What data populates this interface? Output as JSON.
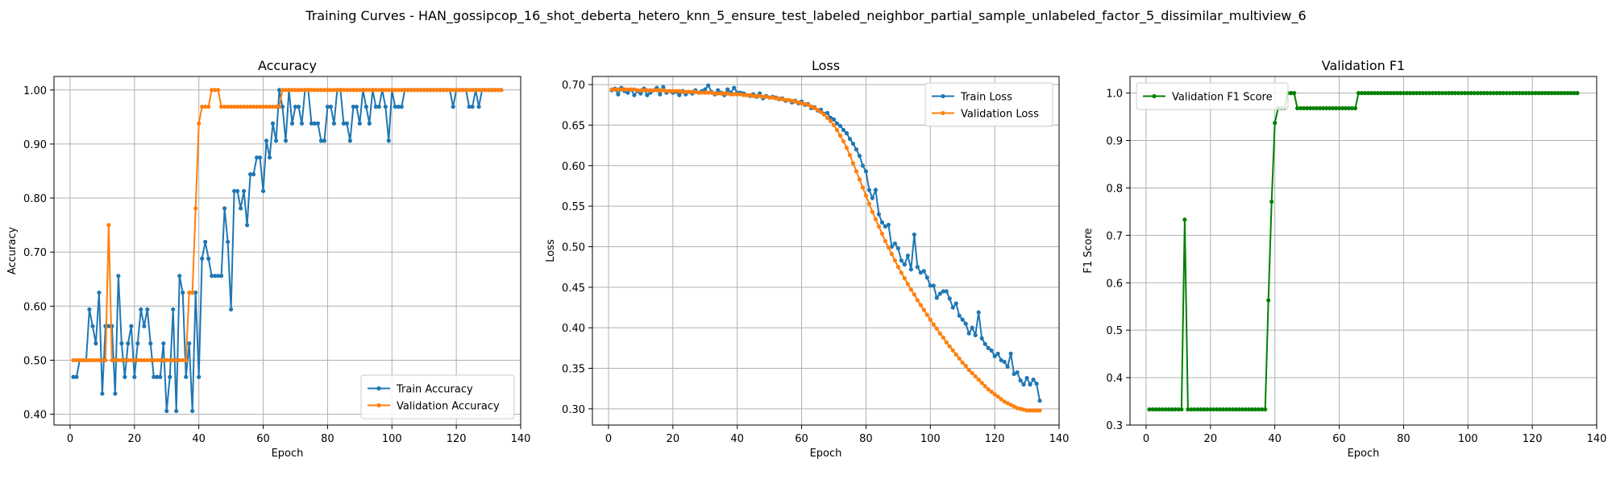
{
  "suptitle": "Training Curves - HAN_gossipcop_16_shot_deberta_hetero_knn_5_ensure_test_labeled_neighbor_partial_sample_unlabeled_factor_5_dissimilar_multiview_6",
  "colors": {
    "blue": "#1f77b4",
    "orange": "#ff7f0e",
    "green": "#008000",
    "grid": "#b0b0b0"
  },
  "chart_data": [
    {
      "type": "line",
      "title": "Accuracy",
      "xlabel": "Epoch",
      "ylabel": "Accuracy",
      "xlim": [
        -5,
        140
      ],
      "ylim": [
        0.38,
        1.025
      ],
      "xticks": [
        0,
        20,
        40,
        60,
        80,
        100,
        120,
        140
      ],
      "yticks": [
        0.4,
        0.5,
        0.6,
        0.7,
        0.8,
        0.9,
        1.0
      ],
      "grid": true,
      "legend": "lower right",
      "series": [
        {
          "name": "Train Accuracy",
          "color": "#1f77b4",
          "x_start": 1,
          "y": [
            0.469,
            0.469,
            0.5,
            0.5,
            0.5,
            0.594,
            0.563,
            0.531,
            0.625,
            0.438,
            0.563,
            0.563,
            0.563,
            0.438,
            0.656,
            0.531,
            0.469,
            0.531,
            0.563,
            0.469,
            0.531,
            0.594,
            0.563,
            0.594,
            0.531,
            0.469,
            0.469,
            0.469,
            0.531,
            0.406,
            0.469,
            0.594,
            0.406,
            0.656,
            0.625,
            0.469,
            0.531,
            0.406,
            0.625,
            0.469,
            0.688,
            0.719,
            0.688,
            0.656,
            0.656,
            0.656,
            0.656,
            0.781,
            0.719,
            0.594,
            0.813,
            0.813,
            0.781,
            0.813,
            0.75,
            0.844,
            0.844,
            0.875,
            0.875,
            0.813,
            0.906,
            0.875,
            0.938,
            0.906,
            1.0,
            0.969,
            0.906,
            1.0,
            0.938,
            0.969,
            0.969,
            0.938,
            1.0,
            1.0,
            0.938,
            0.938,
            0.938,
            0.906,
            0.906,
            0.969,
            0.969,
            0.938,
            1.0,
            1.0,
            0.938,
            0.938,
            0.906,
            0.969,
            0.969,
            0.938,
            1.0,
            0.969,
            0.938,
            1.0,
            0.969,
            0.969,
            1.0,
            0.969,
            0.906,
            1.0,
            0.969,
            0.969,
            0.969,
            1.0,
            1.0,
            1.0,
            1.0,
            1.0,
            1.0,
            1.0,
            1.0,
            1.0,
            1.0,
            1.0,
            1.0,
            1.0,
            1.0,
            1.0,
            0.969,
            1.0,
            1.0,
            1.0,
            1.0,
            0.969,
            0.969,
            1.0,
            0.969,
            1.0,
            1.0,
            1.0,
            1.0,
            1.0,
            1.0,
            1.0
          ]
        },
        {
          "name": "Validation Accuracy",
          "color": "#ff7f0e",
          "x_start": 1,
          "y": [
            0.5,
            0.5,
            0.5,
            0.5,
            0.5,
            0.5,
            0.5,
            0.5,
            0.5,
            0.5,
            0.5,
            0.75,
            0.5,
            0.5,
            0.5,
            0.5,
            0.5,
            0.5,
            0.5,
            0.5,
            0.5,
            0.5,
            0.5,
            0.5,
            0.5,
            0.5,
            0.5,
            0.5,
            0.5,
            0.5,
            0.5,
            0.5,
            0.5,
            0.5,
            0.5,
            0.5,
            0.625,
            0.625,
            0.781,
            0.938,
            0.969,
            0.969,
            0.969,
            1.0,
            1.0,
            1.0,
            0.969,
            0.969,
            0.969,
            0.969,
            0.969,
            0.969,
            0.969,
            0.969,
            0.969,
            0.969,
            0.969,
            0.969,
            0.969,
            0.969,
            0.969,
            0.969,
            0.969,
            0.969,
            0.969,
            1.0,
            1.0,
            1.0,
            1.0,
            1.0,
            1.0,
            1.0,
            1.0,
            1.0,
            1.0,
            1.0,
            1.0,
            1.0,
            1.0,
            1.0,
            1.0,
            1.0,
            1.0,
            1.0,
            1.0,
            1.0,
            1.0,
            1.0,
            1.0,
            1.0,
            1.0,
            1.0,
            1.0,
            1.0,
            1.0,
            1.0,
            1.0,
            1.0,
            1.0,
            1.0,
            1.0,
            1.0,
            1.0,
            1.0,
            1.0,
            1.0,
            1.0,
            1.0,
            1.0,
            1.0,
            1.0,
            1.0,
            1.0,
            1.0,
            1.0,
            1.0,
            1.0,
            1.0,
            1.0,
            1.0,
            1.0,
            1.0,
            1.0,
            1.0,
            1.0,
            1.0,
            1.0,
            1.0,
            1.0,
            1.0,
            1.0,
            1.0,
            1.0,
            1.0
          ]
        }
      ]
    },
    {
      "type": "line",
      "title": "Loss",
      "xlabel": "Epoch",
      "ylabel": "Loss",
      "xlim": [
        -5,
        140
      ],
      "ylim": [
        0.28,
        0.71
      ],
      "xticks": [
        0,
        20,
        40,
        60,
        80,
        100,
        120,
        140
      ],
      "yticks": [
        0.3,
        0.35,
        0.4,
        0.45,
        0.5,
        0.55,
        0.6,
        0.65,
        0.7
      ],
      "grid": true,
      "legend": "upper right",
      "series": [
        {
          "name": "Train Loss",
          "color": "#1f77b4",
          "x_start": 1,
          "y": [
            0.693,
            0.695,
            0.688,
            0.696,
            0.692,
            0.69,
            0.694,
            0.687,
            0.692,
            0.689,
            0.695,
            0.687,
            0.69,
            0.693,
            0.696,
            0.688,
            0.697,
            0.69,
            0.692,
            0.69,
            0.691,
            0.687,
            0.692,
            0.688,
            0.691,
            0.689,
            0.693,
            0.69,
            0.692,
            0.694,
            0.699,
            0.691,
            0.688,
            0.693,
            0.69,
            0.687,
            0.694,
            0.69,
            0.696,
            0.69,
            0.69,
            0.689,
            0.687,
            0.686,
            0.688,
            0.685,
            0.689,
            0.683,
            0.686,
            0.684,
            0.685,
            0.684,
            0.682,
            0.683,
            0.68,
            0.681,
            0.678,
            0.68,
            0.677,
            0.679,
            0.675,
            0.676,
            0.671,
            0.672,
            0.668,
            0.669,
            0.664,
            0.665,
            0.659,
            0.657,
            0.652,
            0.649,
            0.644,
            0.64,
            0.633,
            0.627,
            0.62,
            0.612,
            0.6,
            0.593,
            0.57,
            0.56,
            0.57,
            0.54,
            0.53,
            0.525,
            0.527,
            0.5,
            0.504,
            0.498,
            0.483,
            0.478,
            0.489,
            0.472,
            0.515,
            0.475,
            0.468,
            0.47,
            0.462,
            0.452,
            0.452,
            0.437,
            0.442,
            0.445,
            0.445,
            0.436,
            0.425,
            0.43,
            0.415,
            0.41,
            0.405,
            0.393,
            0.4,
            0.391,
            0.419,
            0.387,
            0.38,
            0.375,
            0.372,
            0.365,
            0.368,
            0.36,
            0.358,
            0.352,
            0.368,
            0.343,
            0.345,
            0.335,
            0.33,
            0.338,
            0.33,
            0.336,
            0.331,
            0.31
          ]
        },
        {
          "name": "Validation Loss",
          "color": "#ff7f0e",
          "x_start": 1,
          "y": [
            0.694,
            0.694,
            0.694,
            0.694,
            0.694,
            0.694,
            0.694,
            0.694,
            0.693,
            0.693,
            0.693,
            0.693,
            0.693,
            0.693,
            0.693,
            0.693,
            0.693,
            0.692,
            0.692,
            0.692,
            0.692,
            0.692,
            0.691,
            0.691,
            0.691,
            0.691,
            0.691,
            0.69,
            0.69,
            0.69,
            0.69,
            0.69,
            0.689,
            0.689,
            0.689,
            0.689,
            0.689,
            0.688,
            0.688,
            0.688,
            0.688,
            0.687,
            0.687,
            0.687,
            0.686,
            0.686,
            0.686,
            0.685,
            0.685,
            0.684,
            0.684,
            0.683,
            0.683,
            0.682,
            0.681,
            0.681,
            0.68,
            0.679,
            0.678,
            0.677,
            0.676,
            0.675,
            0.673,
            0.671,
            0.669,
            0.666,
            0.663,
            0.659,
            0.655,
            0.65,
            0.644,
            0.637,
            0.63,
            0.622,
            0.613,
            0.603,
            0.593,
            0.583,
            0.573,
            0.563,
            0.553,
            0.543,
            0.534,
            0.525,
            0.516,
            0.507,
            0.499,
            0.491,
            0.483,
            0.475,
            0.468,
            0.461,
            0.454,
            0.447,
            0.441,
            0.434,
            0.428,
            0.422,
            0.416,
            0.41,
            0.404,
            0.399,
            0.393,
            0.388,
            0.382,
            0.377,
            0.372,
            0.367,
            0.362,
            0.357,
            0.353,
            0.348,
            0.344,
            0.34,
            0.336,
            0.332,
            0.328,
            0.324,
            0.321,
            0.318,
            0.315,
            0.312,
            0.309,
            0.307,
            0.305,
            0.303,
            0.301,
            0.3,
            0.299,
            0.298,
            0.298,
            0.298,
            0.298,
            0.298
          ]
        }
      ]
    },
    {
      "type": "line",
      "title": "Validation F1",
      "xlabel": "Epoch",
      "ylabel": "F1 Score",
      "xlim": [
        -5,
        140
      ],
      "ylim": [
        0.3,
        1.035
      ],
      "xticks": [
        0,
        20,
        40,
        60,
        80,
        100,
        120,
        140
      ],
      "yticks": [
        0.3,
        0.4,
        0.5,
        0.6,
        0.7,
        0.8,
        0.9,
        1.0
      ],
      "grid": true,
      "legend": "upper left",
      "series": [
        {
          "name": "Validation F1 Score",
          "color": "#008000",
          "x_start": 1,
          "y": [
            0.333,
            0.333,
            0.333,
            0.333,
            0.333,
            0.333,
            0.333,
            0.333,
            0.333,
            0.333,
            0.333,
            0.733,
            0.333,
            0.333,
            0.333,
            0.333,
            0.333,
            0.333,
            0.333,
            0.333,
            0.333,
            0.333,
            0.333,
            0.333,
            0.333,
            0.333,
            0.333,
            0.333,
            0.333,
            0.333,
            0.333,
            0.333,
            0.333,
            0.333,
            0.333,
            0.333,
            0.333,
            0.563,
            0.771,
            0.937,
            0.968,
            0.968,
            0.968,
            1.0,
            1.0,
            1.0,
            0.968,
            0.968,
            0.968,
            0.968,
            0.968,
            0.968,
            0.968,
            0.968,
            0.968,
            0.968,
            0.968,
            0.968,
            0.968,
            0.968,
            0.968,
            0.968,
            0.968,
            0.968,
            0.968,
            1.0,
            1.0,
            1.0,
            1.0,
            1.0,
            1.0,
            1.0,
            1.0,
            1.0,
            1.0,
            1.0,
            1.0,
            1.0,
            1.0,
            1.0,
            1.0,
            1.0,
            1.0,
            1.0,
            1.0,
            1.0,
            1.0,
            1.0,
            1.0,
            1.0,
            1.0,
            1.0,
            1.0,
            1.0,
            1.0,
            1.0,
            1.0,
            1.0,
            1.0,
            1.0,
            1.0,
            1.0,
            1.0,
            1.0,
            1.0,
            1.0,
            1.0,
            1.0,
            1.0,
            1.0,
            1.0,
            1.0,
            1.0,
            1.0,
            1.0,
            1.0,
            1.0,
            1.0,
            1.0,
            1.0,
            1.0,
            1.0,
            1.0,
            1.0,
            1.0,
            1.0,
            1.0,
            1.0,
            1.0,
            1.0,
            1.0,
            1.0,
            1.0,
            1.0
          ]
        }
      ]
    }
  ]
}
